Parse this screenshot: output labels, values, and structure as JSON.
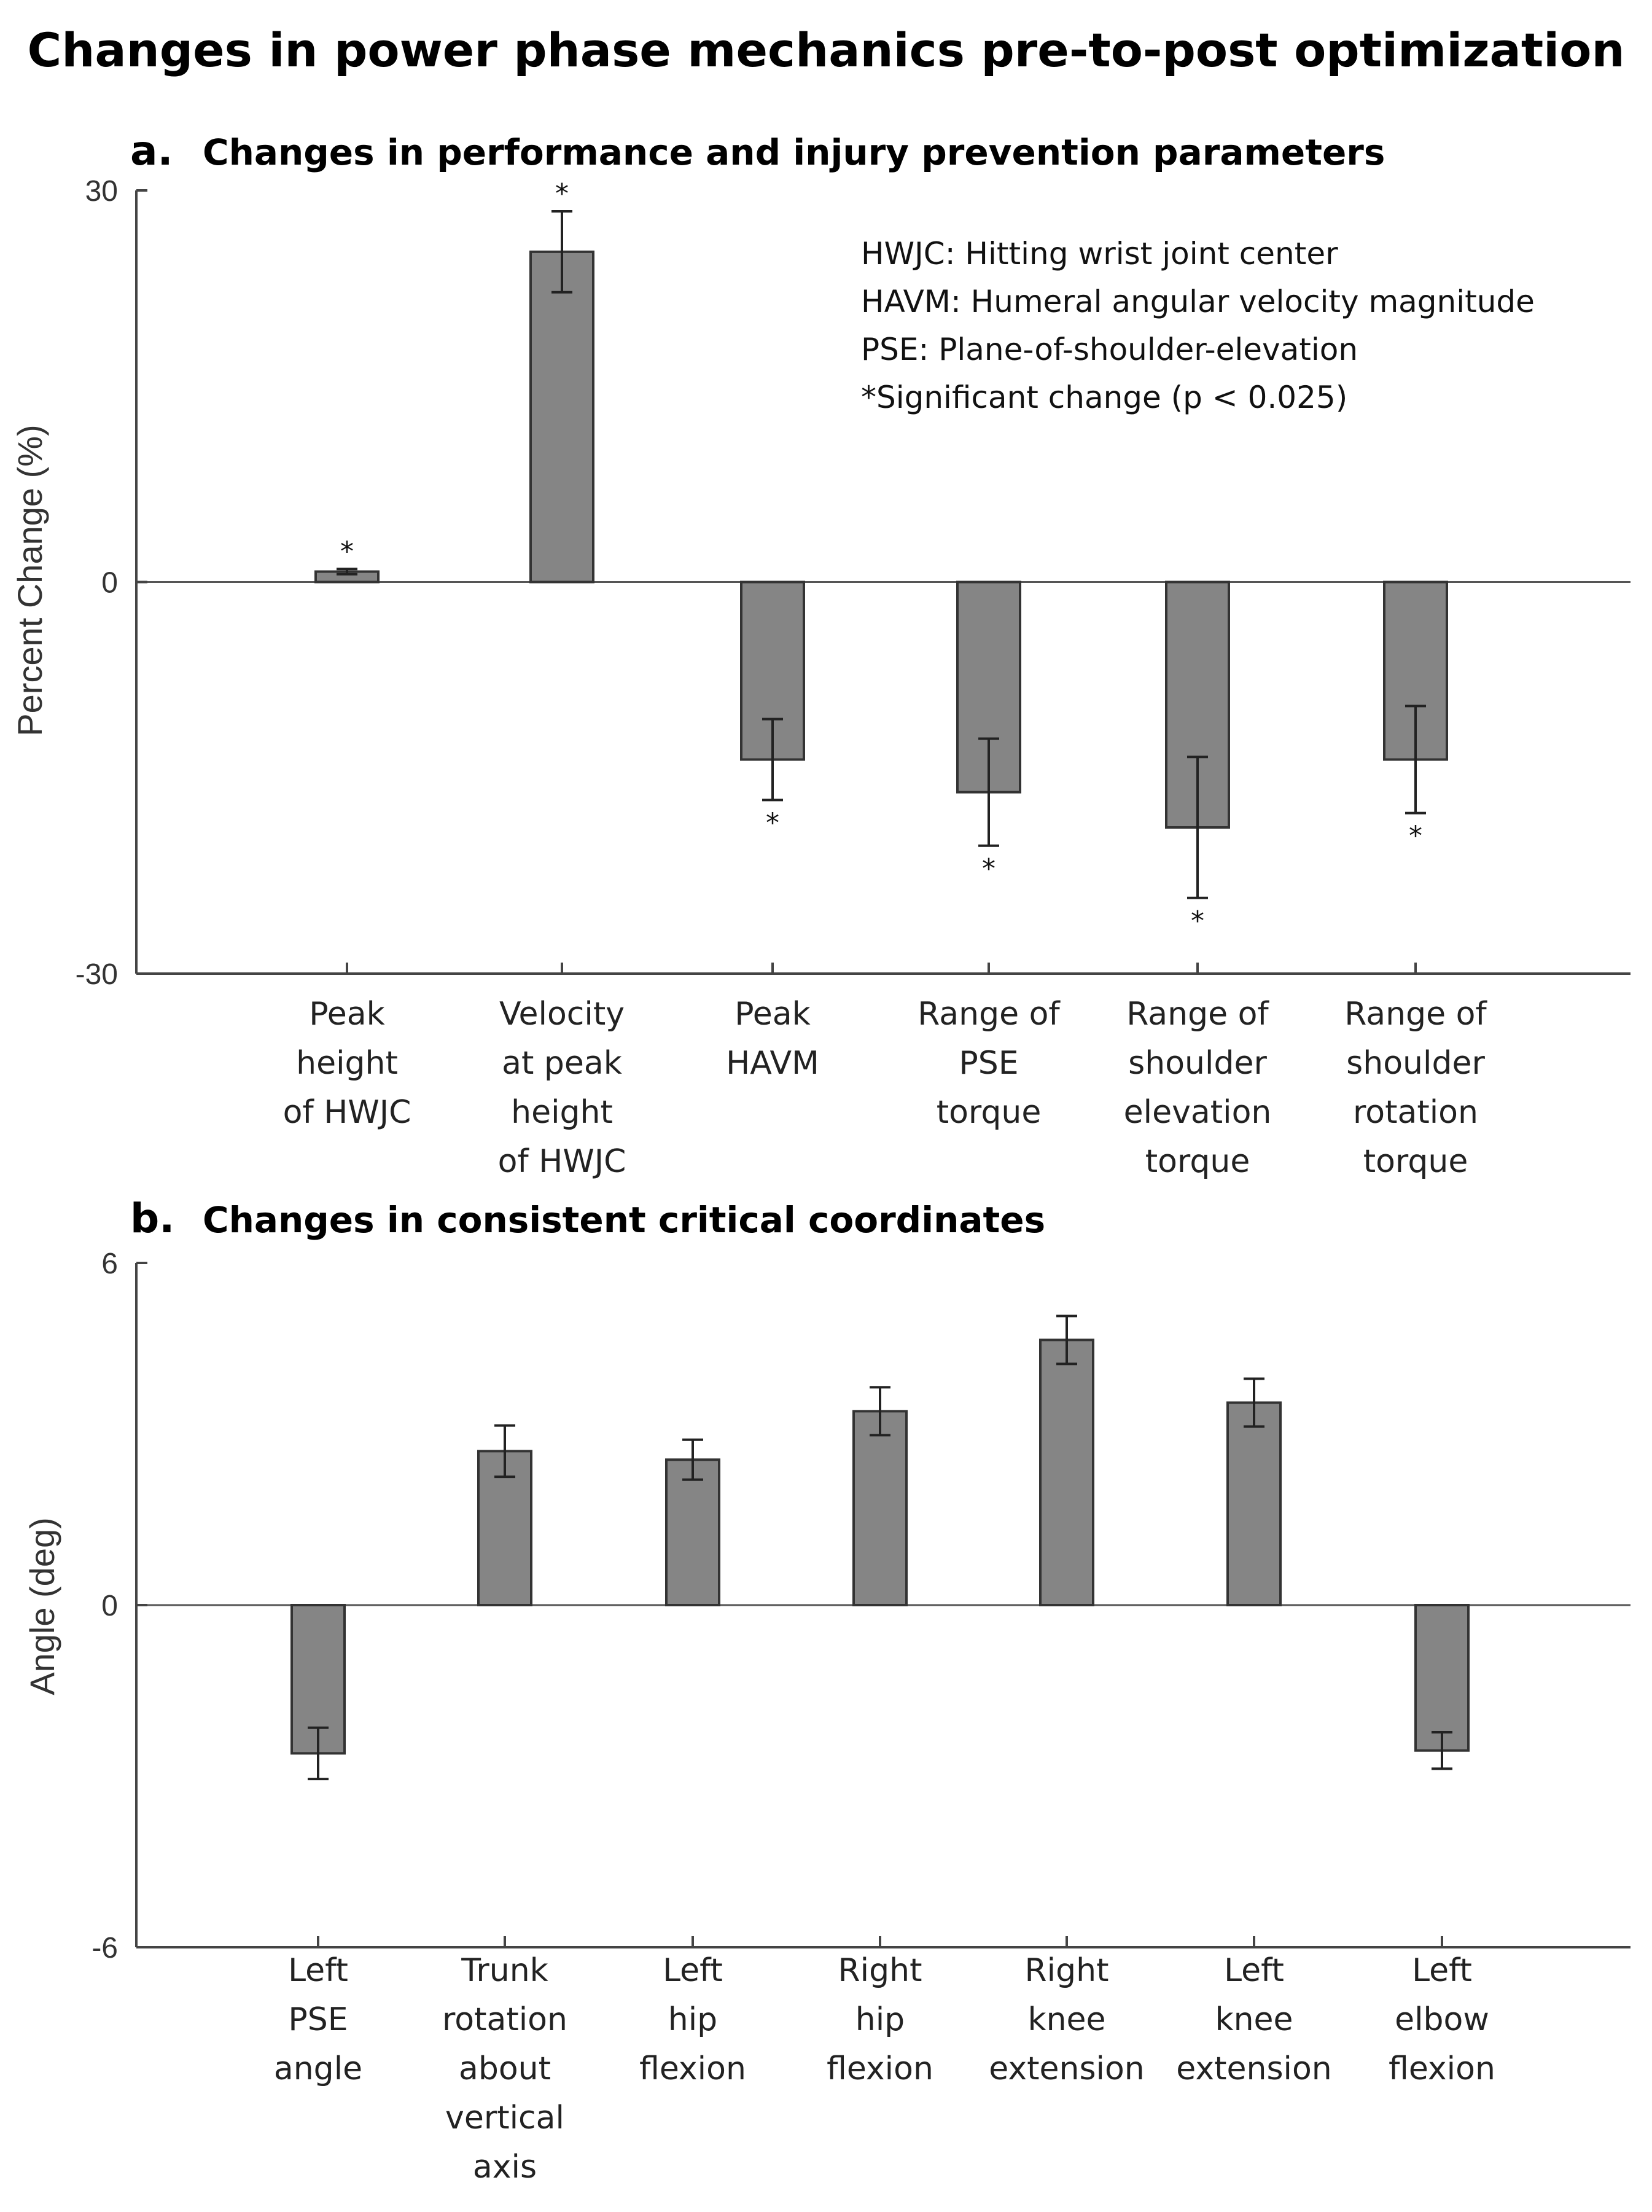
{
  "title": "Changes in power phase mechanics pre-to-post optimization",
  "chart_data": [
    {
      "type": "bar",
      "panel_letter": "a.",
      "title": "Changes in performance and injury prevention parameters",
      "xlabel": "",
      "ylabel": "Percent Change (%)",
      "ylim": [
        -30,
        30
      ],
      "yticks": [
        "30",
        "0",
        "-30"
      ],
      "categories": [
        [
          "Peak",
          "height",
          "of HWJC"
        ],
        [
          "Velocity",
          "at peak",
          "height",
          "of HWJC"
        ],
        [
          "Peak",
          "HAVM"
        ],
        [
          "Range of",
          "PSE",
          "torque"
        ],
        [
          "Range of",
          "shoulder",
          "elevation",
          "torque"
        ],
        [
          "Range of",
          "shoulder",
          "rotation",
          "torque"
        ]
      ],
      "values": [
        0.8,
        25.3,
        -13.6,
        -16.1,
        -18.8,
        -13.6
      ],
      "errors": [
        0.2,
        3.1,
        3.1,
        4.1,
        5.4,
        4.1
      ],
      "significance_marker": "*",
      "significant": [
        true,
        true,
        true,
        true,
        true,
        true
      ],
      "legend_notes": [
        "HWJC: Hitting wrist joint center",
        "HAVM:  Humeral angular velocity magnitude",
        "PSE: Plane-of-shoulder-elevation",
        "*Significant change (p < 0.025)"
      ],
      "legend_position": "top-right"
    },
    {
      "type": "bar",
      "panel_letter": "b.",
      "title": "Changes in consistent critical coordinates",
      "xlabel": "",
      "ylabel": "Angle (deg)",
      "ylim": [
        -6,
        6
      ],
      "yticks": [
        "6",
        "0",
        "-6"
      ],
      "categories": [
        [
          "Left",
          "PSE",
          "angle"
        ],
        [
          "Trunk",
          "rotation",
          "about",
          "vertical",
          "axis"
        ],
        [
          "Left",
          "hip",
          "flexion"
        ],
        [
          "Right",
          "hip",
          "flexion"
        ],
        [
          "Right",
          "knee",
          "extension"
        ],
        [
          "Left",
          "knee",
          "extension"
        ],
        [
          "Left",
          "elbow",
          "flexion"
        ]
      ],
      "values": [
        -2.6,
        2.7,
        2.55,
        3.4,
        4.65,
        3.55,
        -2.55
      ],
      "errors": [
        0.45,
        0.45,
        0.35,
        0.42,
        0.42,
        0.42,
        0.32
      ]
    }
  ]
}
